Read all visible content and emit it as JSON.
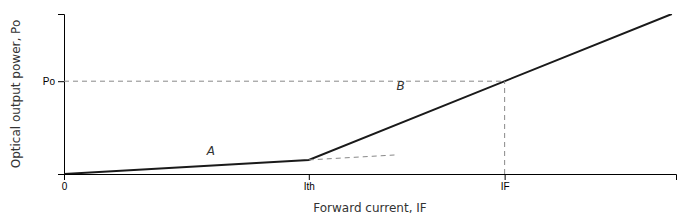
{
  "chart_data": {
    "type": "line",
    "xlabel": "Forward current, IF",
    "ylabel": "Optical output power, Po",
    "xlim": [
      0,
      10
    ],
    "ylim": [
      0,
      10
    ],
    "xticks": [
      0,
      {
        "value": 4.0,
        "label": "Ith"
      },
      {
        "value": 7.2,
        "label": "IF"
      }
    ],
    "yticks": [
      {
        "value": 5.8,
        "label": "Po"
      }
    ],
    "grid": false,
    "series": [
      {
        "color": "#1a1a1a",
        "line_style": "solid",
        "x": [
          0,
          4.0,
          9.93170731707317
        ],
        "values": [
          0,
          0.88,
          10
        ]
      },
      {
        "color": "#888888",
        "line_style": "dashed",
        "x": [
          4.0,
          5.4
        ],
        "values": [
          0.88,
          1.188
        ]
      },
      {
        "color": "#888888",
        "line_style": "dashed",
        "x": [
          0,
          7.2
        ],
        "values": [
          5.8,
          5.8
        ]
      },
      {
        "color": "#888888",
        "line_style": "dashed",
        "x": [
          7.2,
          7.2
        ],
        "values": [
          0,
          5.8
        ]
      }
    ],
    "annotations": [
      {
        "text": "A",
        "x": 2.4,
        "y": 1.4
      },
      {
        "text": "B",
        "x": 5.5,
        "y": 5.5
      }
    ]
  }
}
